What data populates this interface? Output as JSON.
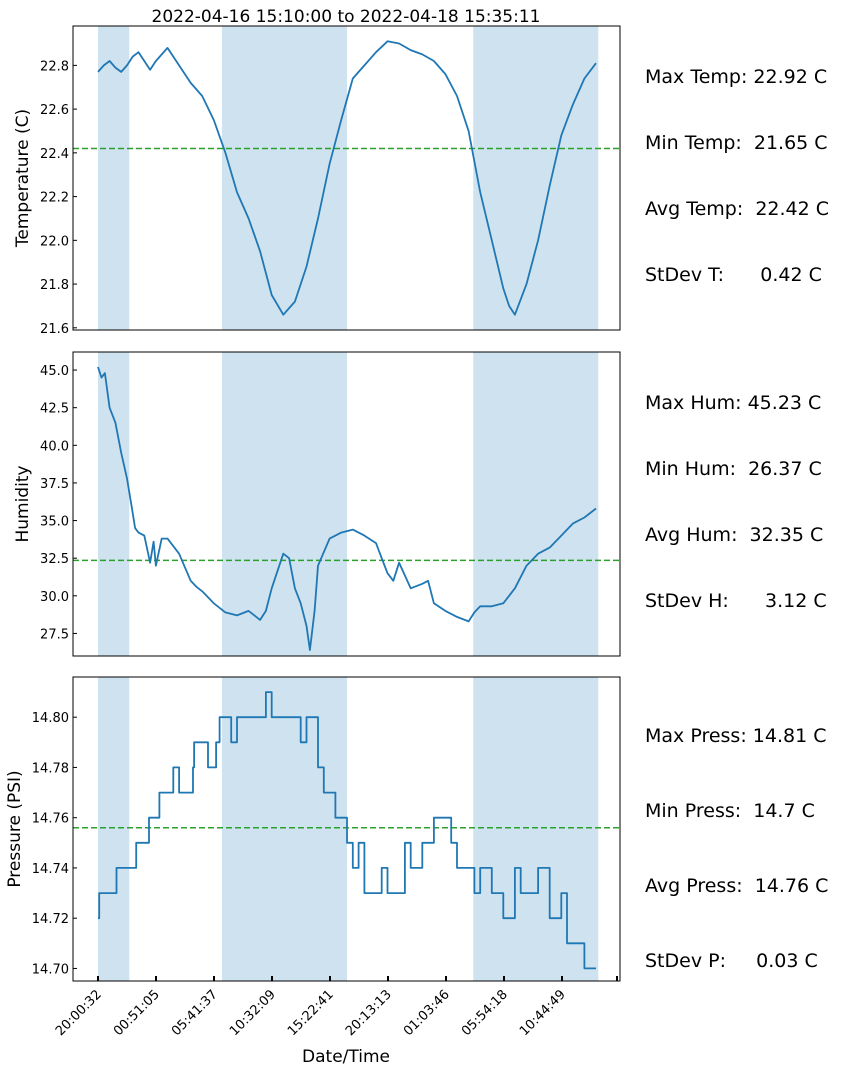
{
  "title": "2022-04-16 15:10:00 to 2022-04-18 15:35:11",
  "xlabel": "Date/Time",
  "x_ticks": [
    "20:00:32",
    "00:51:05",
    "05:41:37",
    "10:32:09",
    "15:22:41",
    "20:13:13",
    "01:03:46",
    "05:54:18",
    "10:44:49"
  ],
  "colors": {
    "line": "#1f77b4",
    "mean": "#2ca02c",
    "shade": "#cfe2ef"
  },
  "chart_data": [
    {
      "type": "line",
      "ylabel": "Temperature (C)",
      "ylim": [
        21.59,
        22.98
      ],
      "yticks": [
        21.6,
        21.8,
        22.0,
        22.2,
        22.4,
        22.6,
        22.8
      ],
      "ytick_labels": [
        "21.6",
        "21.8",
        "22.0",
        "22.2",
        "22.4",
        "22.6",
        "22.8"
      ],
      "mean": 22.42,
      "shaded_ranges_hours": [
        [
          0,
          2.7
        ],
        [
          10.7,
          21.5
        ],
        [
          32.4,
          43.2
        ]
      ],
      "series": [
        {
          "x_hours": [
            0,
            0.5,
            1,
            1.5,
            2,
            2.5,
            3,
            3.5,
            4,
            4.5,
            5,
            6,
            7,
            8,
            9,
            10,
            11,
            12,
            13,
            14,
            14.5,
            15,
            16,
            17,
            18,
            19,
            20,
            21,
            22,
            23,
            24,
            25,
            26,
            27,
            28,
            29,
            30,
            31,
            32,
            33,
            34,
            35,
            35.5,
            36,
            37,
            38,
            39,
            40,
            41,
            42,
            43
          ],
          "values": [
            22.77,
            22.8,
            22.82,
            22.79,
            22.77,
            22.8,
            22.84,
            22.86,
            22.82,
            22.78,
            22.82,
            22.88,
            22.8,
            22.72,
            22.66,
            22.55,
            22.4,
            22.22,
            22.1,
            21.95,
            21.85,
            21.75,
            21.66,
            21.72,
            21.88,
            22.1,
            22.35,
            22.55,
            22.74,
            22.8,
            22.86,
            22.91,
            22.9,
            22.87,
            22.85,
            22.82,
            22.76,
            22.66,
            22.5,
            22.22,
            22.0,
            21.78,
            21.7,
            21.66,
            21.8,
            22.0,
            22.25,
            22.48,
            22.62,
            22.74,
            22.81
          ]
        }
      ]
    },
    {
      "type": "line",
      "ylabel": "Humidity",
      "ylim": [
        26.0,
        46.2
      ],
      "yticks": [
        27.5,
        30.0,
        32.5,
        35.0,
        37.5,
        40.0,
        42.5,
        45.0
      ],
      "ytick_labels": [
        "27.5",
        "30.0",
        "32.5",
        "35.0",
        "37.5",
        "40.0",
        "42.5",
        "45.0"
      ],
      "mean": 32.35,
      "shaded_ranges_hours": [
        [
          0,
          2.7
        ],
        [
          10.7,
          21.5
        ],
        [
          32.4,
          43.2
        ]
      ],
      "series": [
        {
          "x_hours": [
            0,
            0.3,
            0.6,
            1,
            1.5,
            2,
            2.5,
            3,
            3.2,
            3.5,
            4,
            4.5,
            4.8,
            5,
            5.5,
            6,
            7,
            8,
            8.5,
            9,
            10,
            11,
            12,
            13,
            14,
            14.5,
            15,
            16,
            16.5,
            17,
            17.5,
            18,
            18.3,
            18.7,
            19,
            20,
            21,
            22,
            23,
            24,
            24.5,
            25,
            25.5,
            26,
            27,
            28,
            28.5,
            29,
            30,
            31,
            32,
            32.5,
            33,
            34,
            35,
            36,
            37,
            38,
            39,
            40,
            41,
            42,
            43
          ],
          "values": [
            45.2,
            44.5,
            44.8,
            42.5,
            41.5,
            39.5,
            37.8,
            35.5,
            34.5,
            34.2,
            34.0,
            32.2,
            33.6,
            32.0,
            33.8,
            33.8,
            32.8,
            31.0,
            30.6,
            30.3,
            29.5,
            28.9,
            28.7,
            29.0,
            28.4,
            29.0,
            30.5,
            32.8,
            32.5,
            30.5,
            29.5,
            28.0,
            26.4,
            29.0,
            32.0,
            33.8,
            34.2,
            34.4,
            34.0,
            33.5,
            32.5,
            31.5,
            31.0,
            32.2,
            30.5,
            30.8,
            31.0,
            29.5,
            29.0,
            28.6,
            28.3,
            28.9,
            29.3,
            29.3,
            29.5,
            30.5,
            32.0,
            32.8,
            33.2,
            34.0,
            34.8,
            35.2,
            35.8
          ]
        }
      ]
    },
    {
      "type": "line",
      "ylabel": "Pressure (PSI)",
      "ylim": [
        14.695,
        14.816
      ],
      "yticks": [
        14.7,
        14.72,
        14.74,
        14.76,
        14.78,
        14.8
      ],
      "ytick_labels": [
        "14.70",
        "14.72",
        "14.74",
        "14.76",
        "14.78",
        "14.80"
      ],
      "mean": 14.756,
      "shaded_ranges_hours": [
        [
          0,
          2.7
        ],
        [
          10.7,
          21.5
        ],
        [
          32.4,
          43.2
        ]
      ],
      "series": [
        {
          "x_hours": [
            0,
            0.1,
            0.2,
            1.5,
            1.6,
            2.5,
            3,
            3.2,
            3.3,
            3.6,
            4,
            4.4,
            4.5,
            5.2,
            5.3,
            6,
            6.5,
            7,
            8.2,
            8.3,
            8.7,
            9.5,
            10.2,
            10.5,
            11,
            11.5,
            12,
            13,
            13.5,
            14.5,
            15,
            16,
            17.5,
            18,
            19,
            19.5,
            20,
            20.5,
            21.5,
            22,
            22.5,
            23,
            24,
            24.5,
            25,
            26,
            26.5,
            27,
            28,
            29,
            30,
            30.5,
            31,
            32,
            32.5,
            33,
            34,
            35,
            36,
            36.5,
            37,
            38,
            39,
            40,
            40.5,
            41,
            42,
            43
          ],
          "values": [
            14.72,
            14.73,
            14.73,
            14.73,
            14.74,
            14.74,
            14.74,
            14.74,
            14.75,
            14.75,
            14.75,
            14.76,
            14.76,
            14.76,
            14.77,
            14.77,
            14.78,
            14.77,
            14.78,
            14.79,
            14.79,
            14.78,
            14.79,
            14.8,
            14.8,
            14.79,
            14.8,
            14.8,
            14.8,
            14.81,
            14.8,
            14.8,
            14.79,
            14.8,
            14.78,
            14.77,
            14.77,
            14.76,
            14.75,
            14.74,
            14.75,
            14.73,
            14.73,
            14.74,
            14.73,
            14.73,
            14.75,
            14.74,
            14.75,
            14.76,
            14.76,
            14.75,
            14.74,
            14.74,
            14.73,
            14.74,
            14.73,
            14.72,
            14.74,
            14.73,
            14.73,
            14.74,
            14.72,
            14.73,
            14.71,
            14.71,
            14.7,
            14.7
          ]
        }
      ]
    }
  ],
  "stats": [
    [
      "Max Temp: 22.92 C",
      "Min Temp:  21.65 C",
      "Avg Temp:  22.42 C",
      "StDev T:      0.42 C"
    ],
    [
      "Max Hum: 45.23 C",
      "Min Hum:  26.37 C",
      "Avg Hum:  32.35 C",
      "StDev H:      3.12 C"
    ],
    [
      "Max Press: 14.81 C",
      "Min Press:  14.7 C",
      "Avg Press:  14.76 C",
      "StDev P:     0.03 C"
    ]
  ]
}
